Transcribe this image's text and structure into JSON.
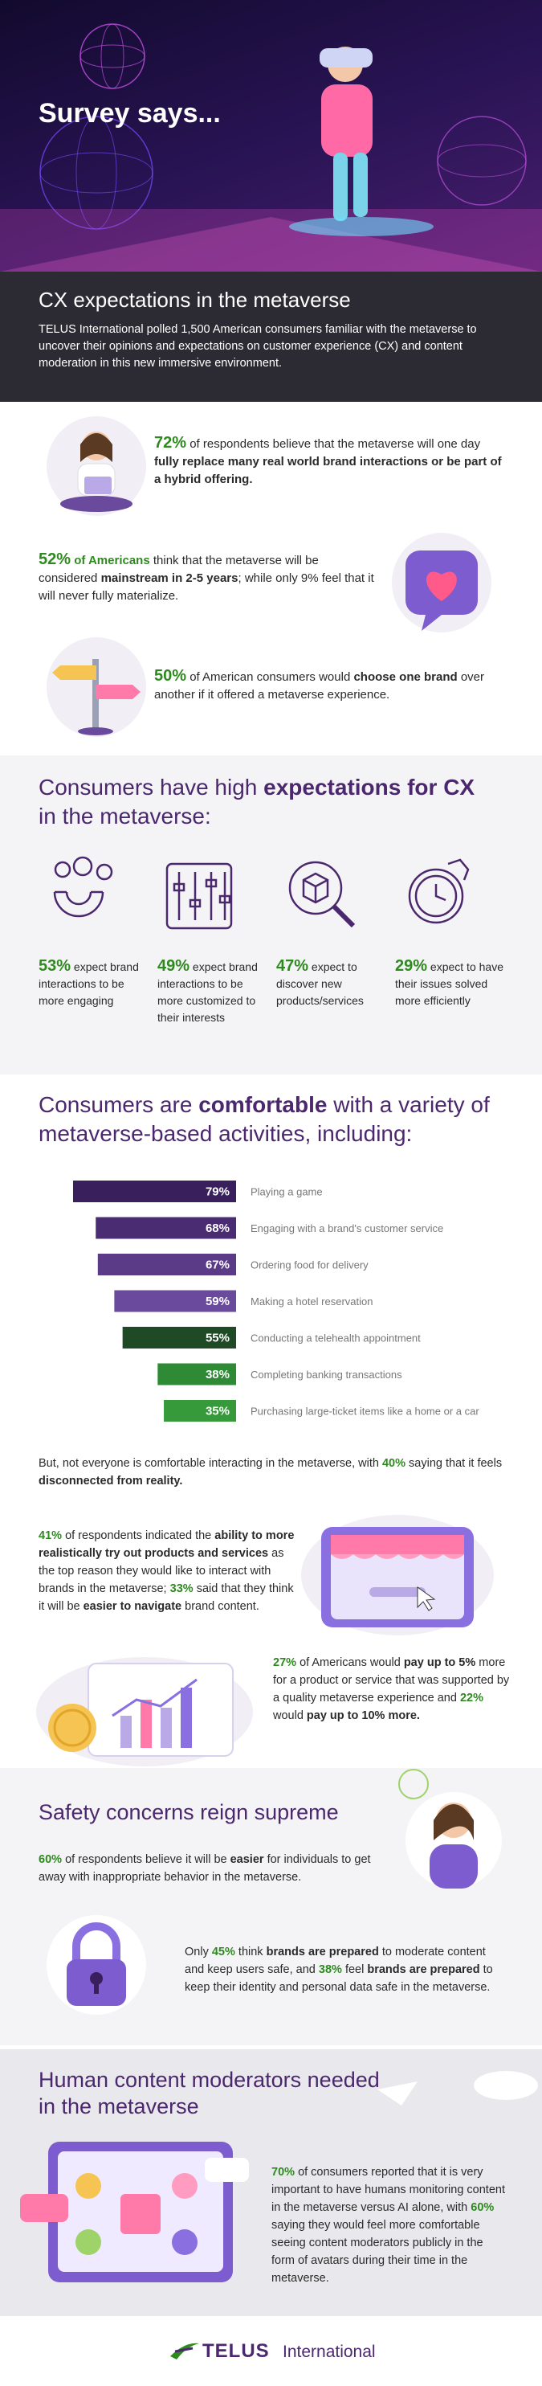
{
  "hero": {
    "title": "Survey says..."
  },
  "intro": {
    "heading": "CX expectations in the metaverse",
    "text": "TELUS International polled 1,500 American consumers familiar with the metaverse to uncover their opinions and expectations on customer experience (CX) and content moderation in this new immersive environment."
  },
  "stats": [
    [
      "72%",
      "of respondents believe that the metaverse will one day",
      "fully replace many real world brand interactions or be part of a hybrid offering."
    ],
    [
      "52%",
      "of Americans",
      "think that the metaverse will be considered",
      "mainstream in 2-5 years",
      "; while only 9% feel that it will never fully materialize."
    ],
    [
      "50%",
      "of American consumers would",
      "choose one brand",
      "over another if it offered a metaverse experience."
    ]
  ],
  "expectations": {
    "heading": [
      "Consumers have high",
      "expectations for CX",
      "in the metaverse:"
    ],
    "items": [
      {
        "value": "53%",
        "text": "expect brand interactions to be more engaging"
      },
      {
        "value": "49%",
        "text": "expect brand interactions to be more customized to their interests"
      },
      {
        "value": "47%",
        "text": "expect to discover new products/services"
      },
      {
        "value": "29%",
        "text": "expect to have their issues solved more efficiently"
      }
    ]
  },
  "comfortable": {
    "heading": [
      "Consumers are",
      "comfortable",
      "with a variety of metaverse-based activities, including:"
    ]
  },
  "chart_data": {
    "type": "bar",
    "orientation": "horizontal",
    "categories": [
      "Playing a game",
      "Engaging with a brand's customer service",
      "Ordering food for delivery",
      "Making a hotel reservation",
      "Conducting a telehealth appointment",
      "Completing banking transactions",
      "Purchasing large-ticket items like a home or a car"
    ],
    "values": [
      79,
      68,
      67,
      59,
      55,
      38,
      35
    ],
    "value_labels": [
      "79%",
      "68%",
      "67%",
      "59%",
      "55%",
      "38%",
      "35%"
    ],
    "colors": [
      "#3a1f5d",
      "#4a2c72",
      "#5b3b88",
      "#6a4a9c",
      "#1e4a26",
      "#2e8a35",
      "#36993a"
    ]
  },
  "disconnect": [
    "But, not everyone is comfortable interacting in the metaverse, with",
    "40%",
    "saying that it feels",
    "disconnected from reality."
  ],
  "try_out": [
    "41%",
    "of respondents indicated the",
    "ability to more realistically try out products and services",
    "as the top reason they would like to interact with brands in the metaverse;",
    "33%",
    "said that they think it will be",
    "easier to navigate",
    "brand content."
  ],
  "pay": [
    "27%",
    "of Americans would",
    "pay up to 5%",
    "more for a product or service that was supported by a quality metaverse experience and",
    "22%",
    "would",
    "pay up to 10% more."
  ],
  "safety": {
    "heading": "Safety concerns reign supreme",
    "p1": [
      "60%",
      "of respondents believe it will be",
      "easier",
      "for individuals to get away with inappropriate behavior in the metaverse."
    ],
    "p2": [
      "Only",
      "45%",
      "think",
      "brands are prepared",
      "to moderate content and keep users safe, and",
      "38%",
      "feel",
      "brands are prepared",
      "to keep their identity and personal data safe in the metaverse."
    ]
  },
  "moderators": {
    "heading": "Human content moderators needed in the metaverse",
    "text": [
      "70%",
      "of consumers reported that it is very important to have humans monitoring content in the metaverse versus AI alone, with",
      "60%",
      "saying they would feel more comfortable seeing content moderators publicly in the form of avatars during their time in the metaverse."
    ]
  },
  "footer": {
    "brand": "TELUS",
    "sub": "International"
  }
}
